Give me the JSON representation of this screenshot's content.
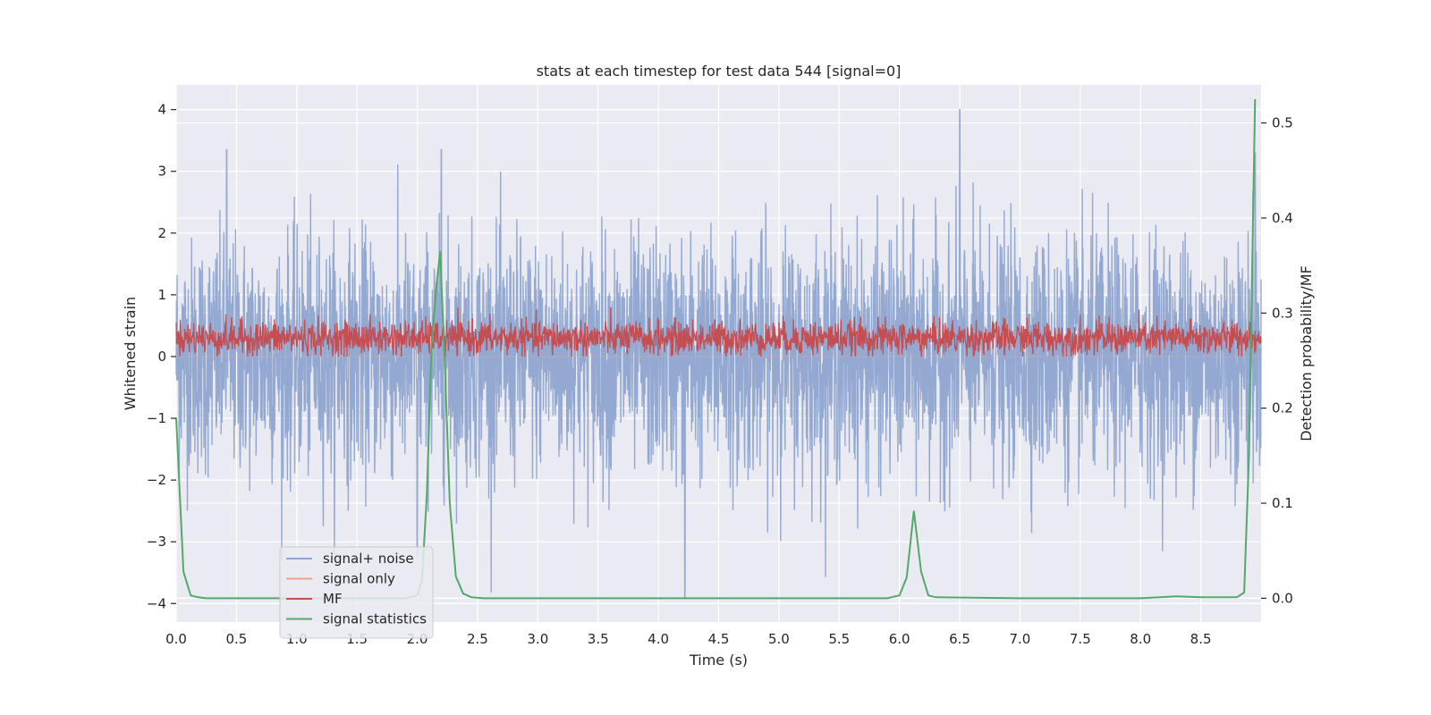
{
  "chart_data": {
    "type": "line",
    "title": "stats at each timestep for test data 544 [signal=0]",
    "xlabel": "Time (s)",
    "ylabel": "Whitened strain",
    "ylabel_right": "Detection probability/MF",
    "xlim": [
      0.0,
      9.0
    ],
    "ylim": [
      -4.3,
      4.4
    ],
    "ylim_right": [
      -0.025,
      0.54
    ],
    "x_ticks": [
      "0.0",
      "0.5",
      "1.0",
      "1.5",
      "2.0",
      "2.5",
      "3.0",
      "3.5",
      "4.0",
      "4.5",
      "5.0",
      "5.5",
      "6.0",
      "6.5",
      "7.0",
      "7.5",
      "8.0",
      "8.5"
    ],
    "y_ticks": [
      "−4",
      "−3",
      "−2",
      "−1",
      "0",
      "1",
      "2",
      "3",
      "4"
    ],
    "y_ticks_right": [
      "0.0",
      "0.1",
      "0.2",
      "0.3",
      "0.4",
      "0.5"
    ],
    "grid": true,
    "legend_position": "lower-left",
    "series": [
      {
        "name": "signal+ noise",
        "color": "#8fa5cf",
        "axis": "left",
        "description_range": [
          -3.9,
          4.0
        ],
        "notable_peaks": {
          "x": [
            0.42,
            2.0,
            2.2,
            4.22,
            6.5,
            8.95
          ],
          "y": [
            3.35,
            -3.25,
            3.35,
            -3.9,
            4.0,
            3.3
          ]
        }
      },
      {
        "name": "signal only",
        "color": "#eba68e",
        "axis": "left",
        "x": [
          0.0,
          9.0
        ],
        "y": [
          0.0,
          0.0
        ]
      },
      {
        "name": "MF",
        "color": "#c44e52",
        "axis": "left",
        "description_range": [
          0.0,
          0.97
        ]
      },
      {
        "name": "signal statistics",
        "color": "#55a868",
        "axis": "right",
        "x": [
          0.0,
          0.06,
          0.12,
          0.18,
          0.25,
          0.5,
          1.0,
          1.5,
          1.9,
          2.0,
          2.04,
          2.08,
          2.12,
          2.16,
          2.19,
          2.23,
          2.27,
          2.32,
          2.38,
          2.45,
          2.55,
          3.0,
          4.0,
          5.0,
          5.9,
          6.0,
          6.06,
          6.12,
          6.18,
          6.24,
          6.3,
          7.0,
          8.0,
          8.3,
          8.5,
          8.8,
          8.86,
          8.9,
          8.95
        ],
        "y": [
          0.19,
          0.028,
          0.003,
          0.001,
          0.0,
          0.0,
          0.0,
          0.0,
          0.0,
          0.003,
          0.02,
          0.11,
          0.27,
          0.33,
          0.365,
          0.24,
          0.1,
          0.023,
          0.005,
          0.001,
          0.0,
          0.0,
          0.0,
          0.0,
          0.0,
          0.003,
          0.022,
          0.092,
          0.028,
          0.003,
          0.001,
          0.0,
          0.0,
          0.002,
          0.001,
          0.001,
          0.006,
          0.15,
          0.525
        ]
      }
    ]
  }
}
